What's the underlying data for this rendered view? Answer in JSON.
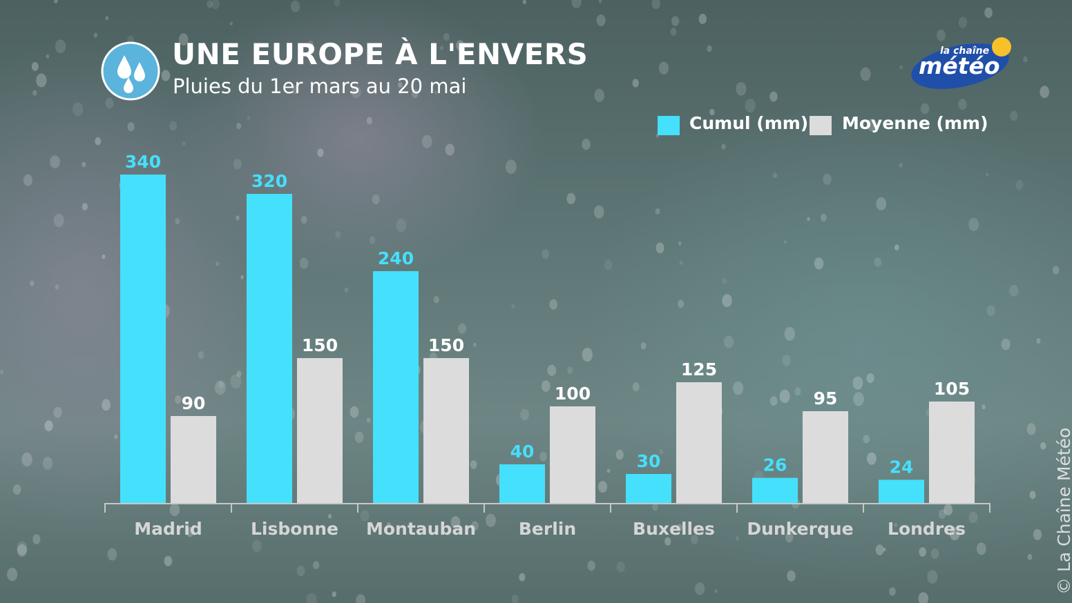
{
  "header": {
    "title": "UNE EUROPE À L'ENVERS",
    "subtitle": "Pluies du 1er mars au 20 mai",
    "icon": "rain-drops-icon"
  },
  "logo": {
    "small_text": "la chaîne",
    "big_text": "météo"
  },
  "copyright": "© La Chaîne Météo",
  "colors": {
    "cumul": "#45e0fb",
    "moyenne": "#dcdcdc",
    "axis": "#c8c8c8"
  },
  "chart_data": {
    "type": "bar",
    "title": "UNE EUROPE À L'ENVERS",
    "subtitle": "Pluies du 1er mars au 20 mai",
    "categories": [
      "Madrid",
      "Lisbonne",
      "Montauban",
      "Berlin",
      "Buxelles",
      "Dunkerque",
      "Londres"
    ],
    "series": [
      {
        "name": "Cumul (mm)",
        "values": [
          340,
          320,
          240,
          40,
          30,
          26,
          24
        ]
      },
      {
        "name": "Moyenne (mm)",
        "values": [
          90,
          150,
          150,
          100,
          125,
          95,
          105
        ]
      }
    ],
    "xlabel": "",
    "ylabel": "",
    "ylim": [
      0,
      340
    ],
    "grid": false,
    "legend_position": "top-right",
    "data_labels": true
  }
}
